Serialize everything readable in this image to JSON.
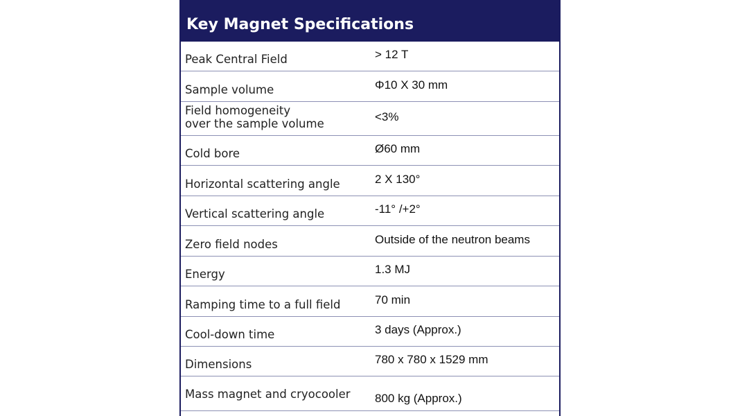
{
  "title": "Key Magnet Specifications",
  "rows": [
    {
      "label": "Peak Central Field",
      "value": "> 12 T"
    },
    {
      "label": "Sample volume",
      "value": "Φ10 X 30 mm"
    },
    {
      "label": "Field homogeneity\nover the sample volume",
      "value": "<3%"
    },
    {
      "label": "Cold bore",
      "value": "Ø60 mm"
    },
    {
      "label": "Horizontal scattering angle",
      "value": "2 X 130°"
    },
    {
      "label": "Vertical scattering angle",
      "value": "-11° /+2°"
    },
    {
      "label": "Zero field nodes",
      "value": "Outside of the neutron beams"
    },
    {
      "label": "Energy",
      "value": "1.3 MJ"
    },
    {
      "label": "Ramping time to a full field",
      "value": "70 min"
    },
    {
      "label": "Cool-down time",
      "value": "3 days (Approx.)"
    },
    {
      "label": "Dimensions",
      "value": "780 x 780 x 1529 mm"
    },
    {
      "label": "Mass magnet and cryocooler",
      "value": "800 kg (Approx.)"
    }
  ],
  "colors": {
    "header_bg": "#1b1c5f",
    "border": "#8c90b4"
  }
}
